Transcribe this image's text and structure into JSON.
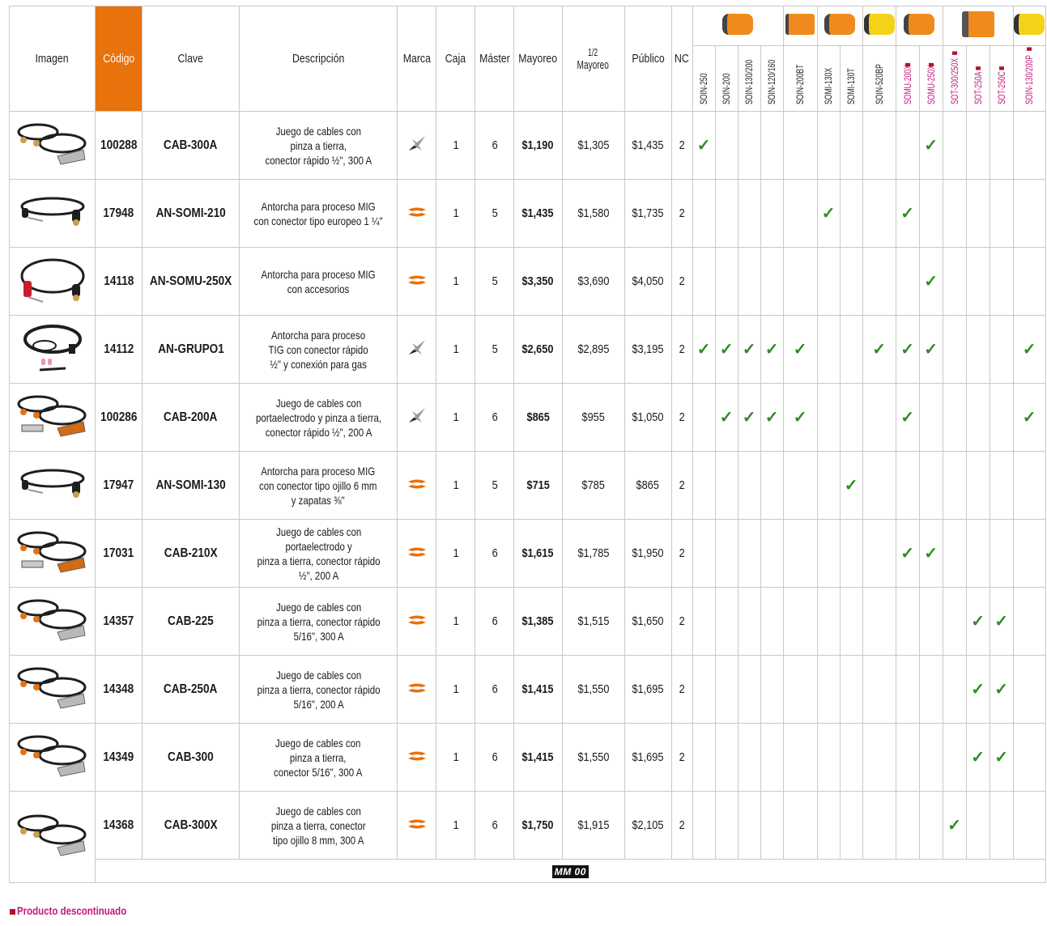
{
  "headers": {
    "imagen": "Imagen",
    "codigo": "Código",
    "clave": "Clave",
    "descripcion": "Descripción",
    "marca": "Marca",
    "caja": "Caja",
    "master": "Máster",
    "mayoreo": "Mayoreo",
    "medio_mayoreo_frac": "1/2",
    "medio_mayoreo": "Mayoreo",
    "publico": "Público",
    "nc": "NC"
  },
  "machine_groups": [
    {
      "icon": "orange-inverter-welder",
      "style": "orange",
      "models": [
        0,
        1,
        2,
        3
      ]
    },
    {
      "icon": "orange-box-welder",
      "style": "box",
      "models": [
        4
      ]
    },
    {
      "icon": "orange-inverter-welder",
      "style": "orange",
      "models": [
        5,
        6
      ]
    },
    {
      "icon": "yellow-inverter-welder",
      "style": "yellow",
      "models": [
        7
      ]
    },
    {
      "icon": "orange-inverter-welder",
      "style": "orange",
      "models": [
        8,
        9
      ]
    },
    {
      "icon": "orange-cart-welder",
      "style": "cart",
      "models": [
        10,
        11,
        12
      ]
    },
    {
      "icon": "yellow-multiprocess-welder",
      "style": "yellow",
      "models": [
        13
      ]
    }
  ],
  "models": [
    {
      "name": "SOIN-250",
      "discontinued": false
    },
    {
      "name": "SOIN-200",
      "discontinued": false
    },
    {
      "name": "SOIN-130/200",
      "discontinued": false
    },
    {
      "name": "SOIN-120/160",
      "discontinued": false
    },
    {
      "name": "SOIN-200BT",
      "discontinued": false
    },
    {
      "name": "SOMI-130X",
      "discontinued": false
    },
    {
      "name": "SOMI-130T",
      "discontinued": false
    },
    {
      "name": "SOIN-520BP",
      "discontinued": false
    },
    {
      "name": "SOMU-200X",
      "discontinued": true
    },
    {
      "name": "SOMU-250X",
      "discontinued": true
    },
    {
      "name": "SOT-300/250X",
      "discontinued": true
    },
    {
      "name": "SOT-250A",
      "discontinued": true
    },
    {
      "name": "SOT-250C",
      "discontinued": true
    },
    {
      "name": "SOIN-130/200P",
      "discontinued": true
    }
  ],
  "check_symbol": "✓",
  "check_color": "#2e8b22",
  "accent_color": "#e8720c",
  "discontinued_color": "#c0187a",
  "rows": [
    {
      "image": "welding-cable-set",
      "codigo": "100288",
      "clave": "CAB-300A",
      "descripcion": [
        "Juego de cables con",
        "pinza a tierra,",
        "conector rápido ½\", 300 A"
      ],
      "marca": "pretul-x",
      "caja": "1",
      "master": "6",
      "mayoreo": "$1,190",
      "medio_mayoreo": "$1,305",
      "publico": "$1,435",
      "nc": "2",
      "compat": [
        0,
        9
      ]
    },
    {
      "image": "mig-torch",
      "codigo": "17948",
      "clave": "AN-SOMI-210",
      "descripcion": [
        "Antorcha para proceso MIG",
        "con conector tipo europeo 1 ¼\""
      ],
      "marca": "truper",
      "caja": "1",
      "master": "5",
      "mayoreo": "$1,435",
      "medio_mayoreo": "$1,580",
      "publico": "$1,735",
      "nc": "2",
      "compat": [
        5,
        8
      ]
    },
    {
      "image": "mig-torch-red",
      "codigo": "14118",
      "clave": "AN-SOMU-250X",
      "descripcion": [
        "Antorcha para proceso MIG",
        "con accesorios"
      ],
      "marca": "truper",
      "caja": "1",
      "master": "5",
      "mayoreo": "$3,350",
      "medio_mayoreo": "$3,690",
      "publico": "$4,050",
      "nc": "2",
      "compat": [
        9
      ]
    },
    {
      "image": "tig-torch",
      "codigo": "14112",
      "clave": "AN-GRUPO1",
      "descripcion": [
        "Antorcha para proceso",
        "TIG con conector rápido",
        "½\" y conexión para gas"
      ],
      "marca": "pretul-x",
      "caja": "1",
      "master": "5",
      "mayoreo": "$2,650",
      "medio_mayoreo": "$2,895",
      "publico": "$3,195",
      "nc": "2",
      "compat": [
        0,
        1,
        2,
        3,
        4,
        7,
        8,
        9,
        13
      ]
    },
    {
      "image": "electrode-holder-cable-set",
      "codigo": "100286",
      "clave": "CAB-200A",
      "descripcion": [
        "Juego de cables con",
        "portaelectrodo y pinza a tierra,",
        "conector rápido ½\", 200 A"
      ],
      "marca": "pretul-x",
      "caja": "1",
      "master": "6",
      "mayoreo": "$865",
      "medio_mayoreo": "$955",
      "publico": "$1,050",
      "nc": "2",
      "compat": [
        1,
        2,
        3,
        4,
        8,
        13
      ]
    },
    {
      "image": "mig-torch-thin",
      "codigo": "17947",
      "clave": "AN-SOMI-130",
      "descripcion": [
        "Antorcha para proceso MIG",
        "con conector tipo ojillo 6 mm",
        "y zapatas ⅜\""
      ],
      "marca": "truper",
      "caja": "1",
      "master": "5",
      "mayoreo": "$715",
      "medio_mayoreo": "$785",
      "publico": "$865",
      "nc": "2",
      "compat": [
        6
      ]
    },
    {
      "image": "electrode-holder-cable-set",
      "codigo": "17031",
      "clave": "CAB-210X",
      "descripcion": [
        "Juego de cables con",
        "portaelectrodo y",
        "pinza a tierra, conector rápido",
        "½\", 200 A"
      ],
      "marca": "truper",
      "caja": "1",
      "master": "6",
      "mayoreo": "$1,615",
      "medio_mayoreo": "$1,785",
      "publico": "$1,950",
      "nc": "2",
      "compat": [
        8,
        9
      ]
    },
    {
      "image": "welding-cable-set-orange",
      "codigo": "14357",
      "clave": "CAB-225",
      "descripcion": [
        "Juego de cables con",
        "pinza a tierra, conector rápido",
        "5/16\", 300 A"
      ],
      "marca": "truper",
      "caja": "1",
      "master": "6",
      "mayoreo": "$1,385",
      "medio_mayoreo": "$1,515",
      "publico": "$1,650",
      "nc": "2",
      "compat": [
        11,
        12
      ]
    },
    {
      "image": "welding-cable-set-orange",
      "codigo": "14348",
      "clave": "CAB-250A",
      "descripcion": [
        "Juego de cables con",
        "pinza a tierra, conector rápido",
        "5/16\", 200 A"
      ],
      "marca": "truper",
      "caja": "1",
      "master": "6",
      "mayoreo": "$1,415",
      "medio_mayoreo": "$1,550",
      "publico": "$1,695",
      "nc": "2",
      "compat": [
        11,
        12
      ]
    },
    {
      "image": "welding-cable-set-orange",
      "codigo": "14349",
      "clave": "CAB-300",
      "descripcion": [
        "Juego de cables con",
        "pinza a tierra,",
        "conector 5/16\", 300 A"
      ],
      "marca": "truper",
      "caja": "1",
      "master": "6",
      "mayoreo": "$1,415",
      "medio_mayoreo": "$1,550",
      "publico": "$1,695",
      "nc": "2",
      "compat": [
        11,
        12
      ]
    },
    {
      "image": "welding-cable-set",
      "codigo": "14368",
      "clave": "CAB-300X",
      "descripcion": [
        "Juego de cables con",
        "pinza a tierra, conector",
        "tipo ojillo 8 mm, 300 A"
      ],
      "marca": "truper",
      "caja": "1",
      "master": "6",
      "mayoreo": "$1,750",
      "medio_mayoreo": "$1,915",
      "publico": "$2,105",
      "nc": "2",
      "compat": [
        10
      ]
    }
  ],
  "footer": {
    "badge": "MM 00",
    "legend": "Producto descontinuado"
  }
}
